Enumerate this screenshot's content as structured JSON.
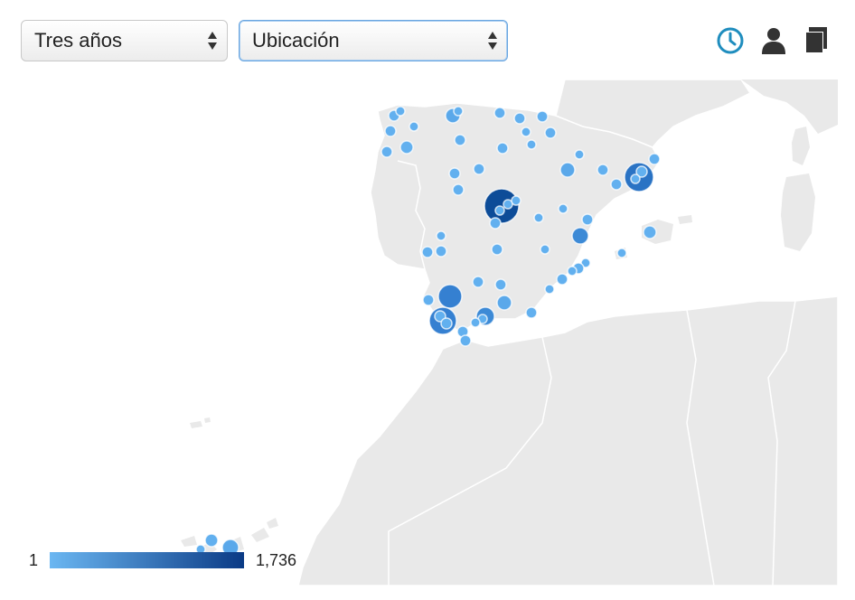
{
  "controls": {
    "period_select": {
      "value": "Tres años"
    },
    "dimension_select": {
      "value": "Ubicación"
    }
  },
  "toolbar": {
    "icons": [
      "clock-icon",
      "user-icon",
      "pages-icon"
    ],
    "active_color": "#1f8dbe",
    "icon_color": "#333333"
  },
  "legend": {
    "min_label": "1",
    "max_label": "1,736",
    "min_color": "#6bb7f2",
    "max_color": "#0a3a85"
  },
  "map": {
    "land_color": "#e9e9e9",
    "sea_color": "#ffffff",
    "border_color": "#ffffff"
  }
}
